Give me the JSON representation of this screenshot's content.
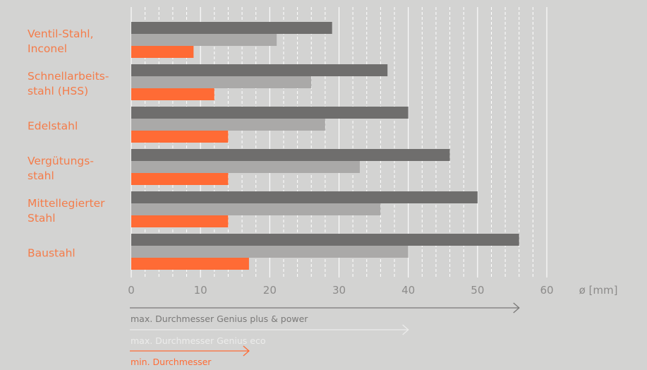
{
  "chart_data": {
    "type": "bar",
    "orientation": "horizontal",
    "categories": [
      [
        "Ventil-Stahl,",
        "Inconel"
      ],
      [
        "Schnellarbeits-",
        "stahl (HSS)"
      ],
      [
        "Edelstahl"
      ],
      [
        "Vergütungs-",
        "stahl"
      ],
      [
        "Mittellegierter",
        "Stahl"
      ],
      [
        "Baustahl"
      ]
    ],
    "series": [
      {
        "values": [
          29,
          37,
          40,
          46,
          50,
          56
        ],
        "color": "#6f6e6d"
      },
      {
        "values": [
          21,
          26,
          28,
          33,
          36,
          40
        ],
        "color": "#aaa9a8"
      },
      {
        "values": [
          9,
          12,
          14,
          14,
          14,
          17
        ],
        "color": "#ff6b35"
      }
    ],
    "xlim": [
      0,
      60
    ],
    "xticks": [
      0,
      10,
      20,
      30,
      40,
      50,
      60
    ],
    "xlabel": "ø [mm]",
    "grid": "vertical, dashed minor every 2 mm, solid at labeled ticks",
    "category_label_color": "#f47c4a",
    "legend": [
      {
        "label": "max. Durchmesser Genius plus & power",
        "color": "#7a7978",
        "extent": 56
      },
      {
        "label": "max. Durchmesser Genius eco",
        "color": "#ececeb",
        "extent": 40
      },
      {
        "label": "min. Durchmesser",
        "color": "#ff6b35",
        "extent": 17
      }
    ]
  }
}
